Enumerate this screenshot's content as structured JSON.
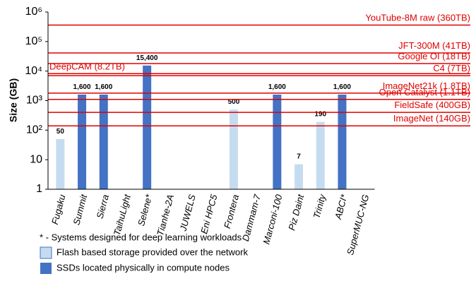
{
  "chart_data": {
    "type": "bar",
    "log_scale": true,
    "y_label": "Size (GB)",
    "categories": [
      "Fugaku",
      "Summit",
      "Sierra",
      "TaihuLight",
      "Selene*",
      "Tianhe-2A",
      "JUWELS",
      "Eni HPC5",
      "Frontera",
      "Dammam-7",
      "Marconi-100",
      "Piz Daint",
      "Trinity",
      "ABCI*",
      "SuperMUC-NG"
    ],
    "series": [
      {
        "name": "Flash based storage provided over the network",
        "color": "#c5dcf0",
        "values": [
          50,
          null,
          null,
          null,
          null,
          null,
          null,
          null,
          500,
          null,
          null,
          7,
          190,
          null,
          null
        ],
        "value_labels": [
          "50",
          null,
          null,
          null,
          null,
          null,
          null,
          null,
          "500",
          null,
          null,
          "7",
          "190",
          null,
          null
        ]
      },
      {
        "name": "SSDs located physically in compute nodes",
        "color": "#4472c4",
        "values": [
          null,
          1600,
          1600,
          null,
          15400,
          null,
          null,
          null,
          null,
          null,
          1600,
          null,
          null,
          1600,
          null
        ],
        "value_labels": [
          null,
          "1,600",
          "1,600",
          null,
          "15,400",
          null,
          null,
          null,
          null,
          null,
          "1,600",
          null,
          null,
          "1,600",
          null
        ]
      }
    ],
    "ylim": [
      1,
      1000000
    ],
    "yticks": [
      1,
      10,
      {
        "value": 100,
        "label": "10²"
      },
      {
        "value": 1000,
        "label": "10³"
      },
      {
        "value": 10000,
        "label": "10⁴"
      },
      {
        "value": 100000,
        "label": "10⁵"
      },
      {
        "value": 1000000,
        "label": "10⁶"
      }
    ],
    "reference_lines": [
      {
        "label": "YouTube-8M raw (360TB)",
        "value": 360000,
        "color": "#e00000",
        "align": "right"
      },
      {
        "label": "JFT-300M (41TB)",
        "value": 41000,
        "color": "#e00000",
        "align": "right"
      },
      {
        "label": "Google OI (18TB)",
        "value": 18000,
        "color": "#e00000",
        "align": "right"
      },
      {
        "label": "DeepCAM (8.2TB)",
        "value": 8200,
        "color": "#e00000",
        "align": "left"
      },
      {
        "label": "C4 (7TB)",
        "value": 7000,
        "color": "#e00000",
        "align": "right"
      },
      {
        "label": "ImageNet21k (1.8TB)",
        "value": 1800,
        "color": "#e00000",
        "align": "right"
      },
      {
        "label": "Open Catalyst (1.1TB)",
        "value": 1100,
        "color": "#e00000",
        "align": "right"
      },
      {
        "label": "FieldSafe (400GB)",
        "value": 400,
        "color": "#e00000",
        "align": "right"
      },
      {
        "label": "ImageNet (140GB)",
        "value": 140,
        "color": "#e00000",
        "align": "right"
      }
    ],
    "footnote": "* - Systems designed for deep learning workloads"
  }
}
